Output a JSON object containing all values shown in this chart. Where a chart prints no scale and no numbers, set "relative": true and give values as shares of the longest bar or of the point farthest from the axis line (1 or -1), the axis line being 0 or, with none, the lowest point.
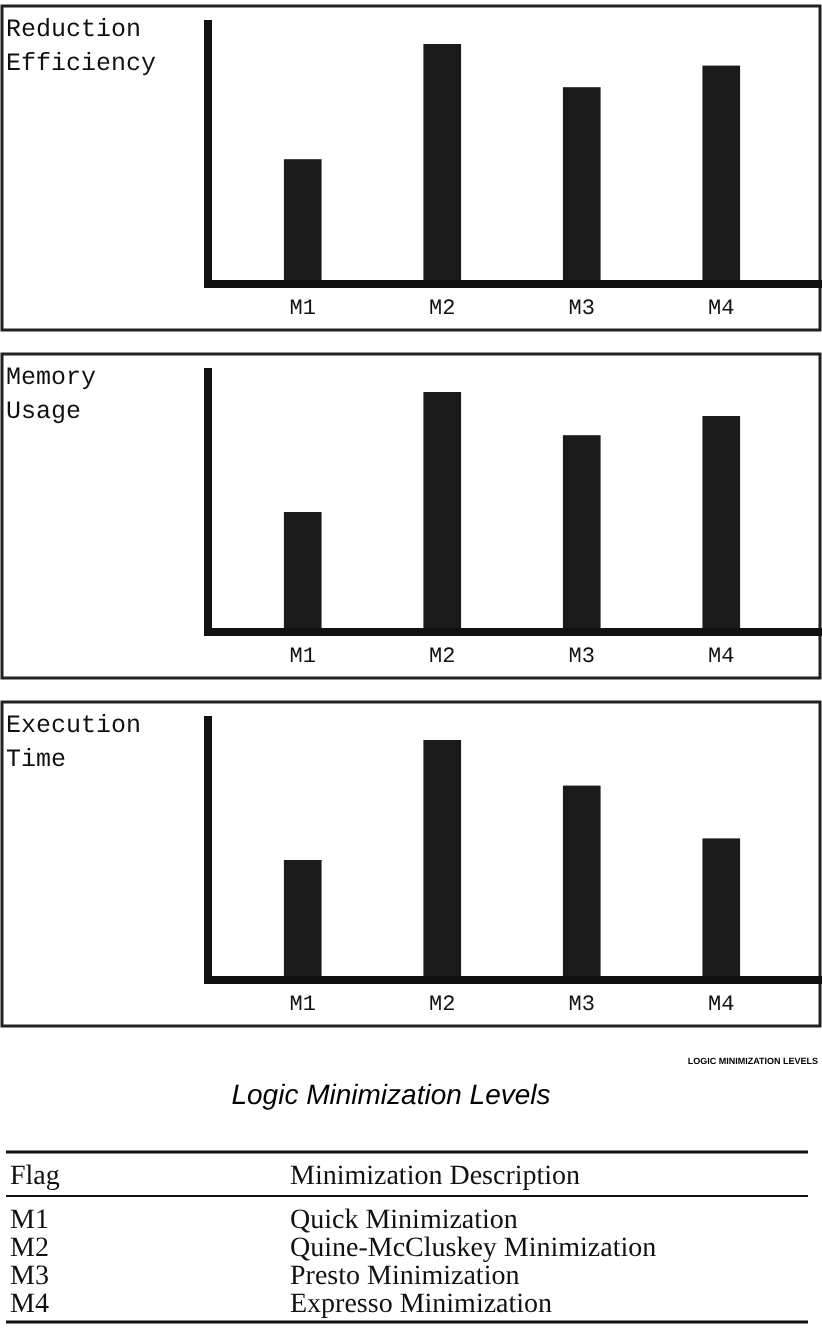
{
  "chart_data": [
    {
      "type": "bar",
      "title": "Reduction Efficiency",
      "categories": [
        "M1",
        "M2",
        "M3",
        "M4"
      ],
      "values": [
        0.52,
        1,
        0.82,
        0.91
      ],
      "relative": true,
      "color": "#1a1a1a"
    },
    {
      "type": "bar",
      "title": "Memory Usage",
      "categories": [
        "M1",
        "M2",
        "M3",
        "M4"
      ],
      "values": [
        0.5,
        1,
        0.82,
        0.9
      ],
      "relative": true,
      "color": "#1a1a1a"
    },
    {
      "type": "bar",
      "title": "Execution Time",
      "categories": [
        "M1",
        "M2",
        "M3",
        "M4"
      ],
      "values": [
        0.5,
        1,
        0.81,
        0.59
      ],
      "relative": true,
      "color": "#1a1a1a"
    },
    {
      "type": "other",
      "title": "Logic Minimization Levels",
      "subtitle": "LOGIC MINIMIZATION LEVELS",
      "annotations": [
        "Flag",
        "Minimization Description",
        "M1",
        "Quick Minimization",
        "M2",
        "Quine-McCluskey Minimization",
        "M3",
        "Presto Minimization",
        "M4",
        "Expresso Minimization"
      ]
    }
  ]
}
